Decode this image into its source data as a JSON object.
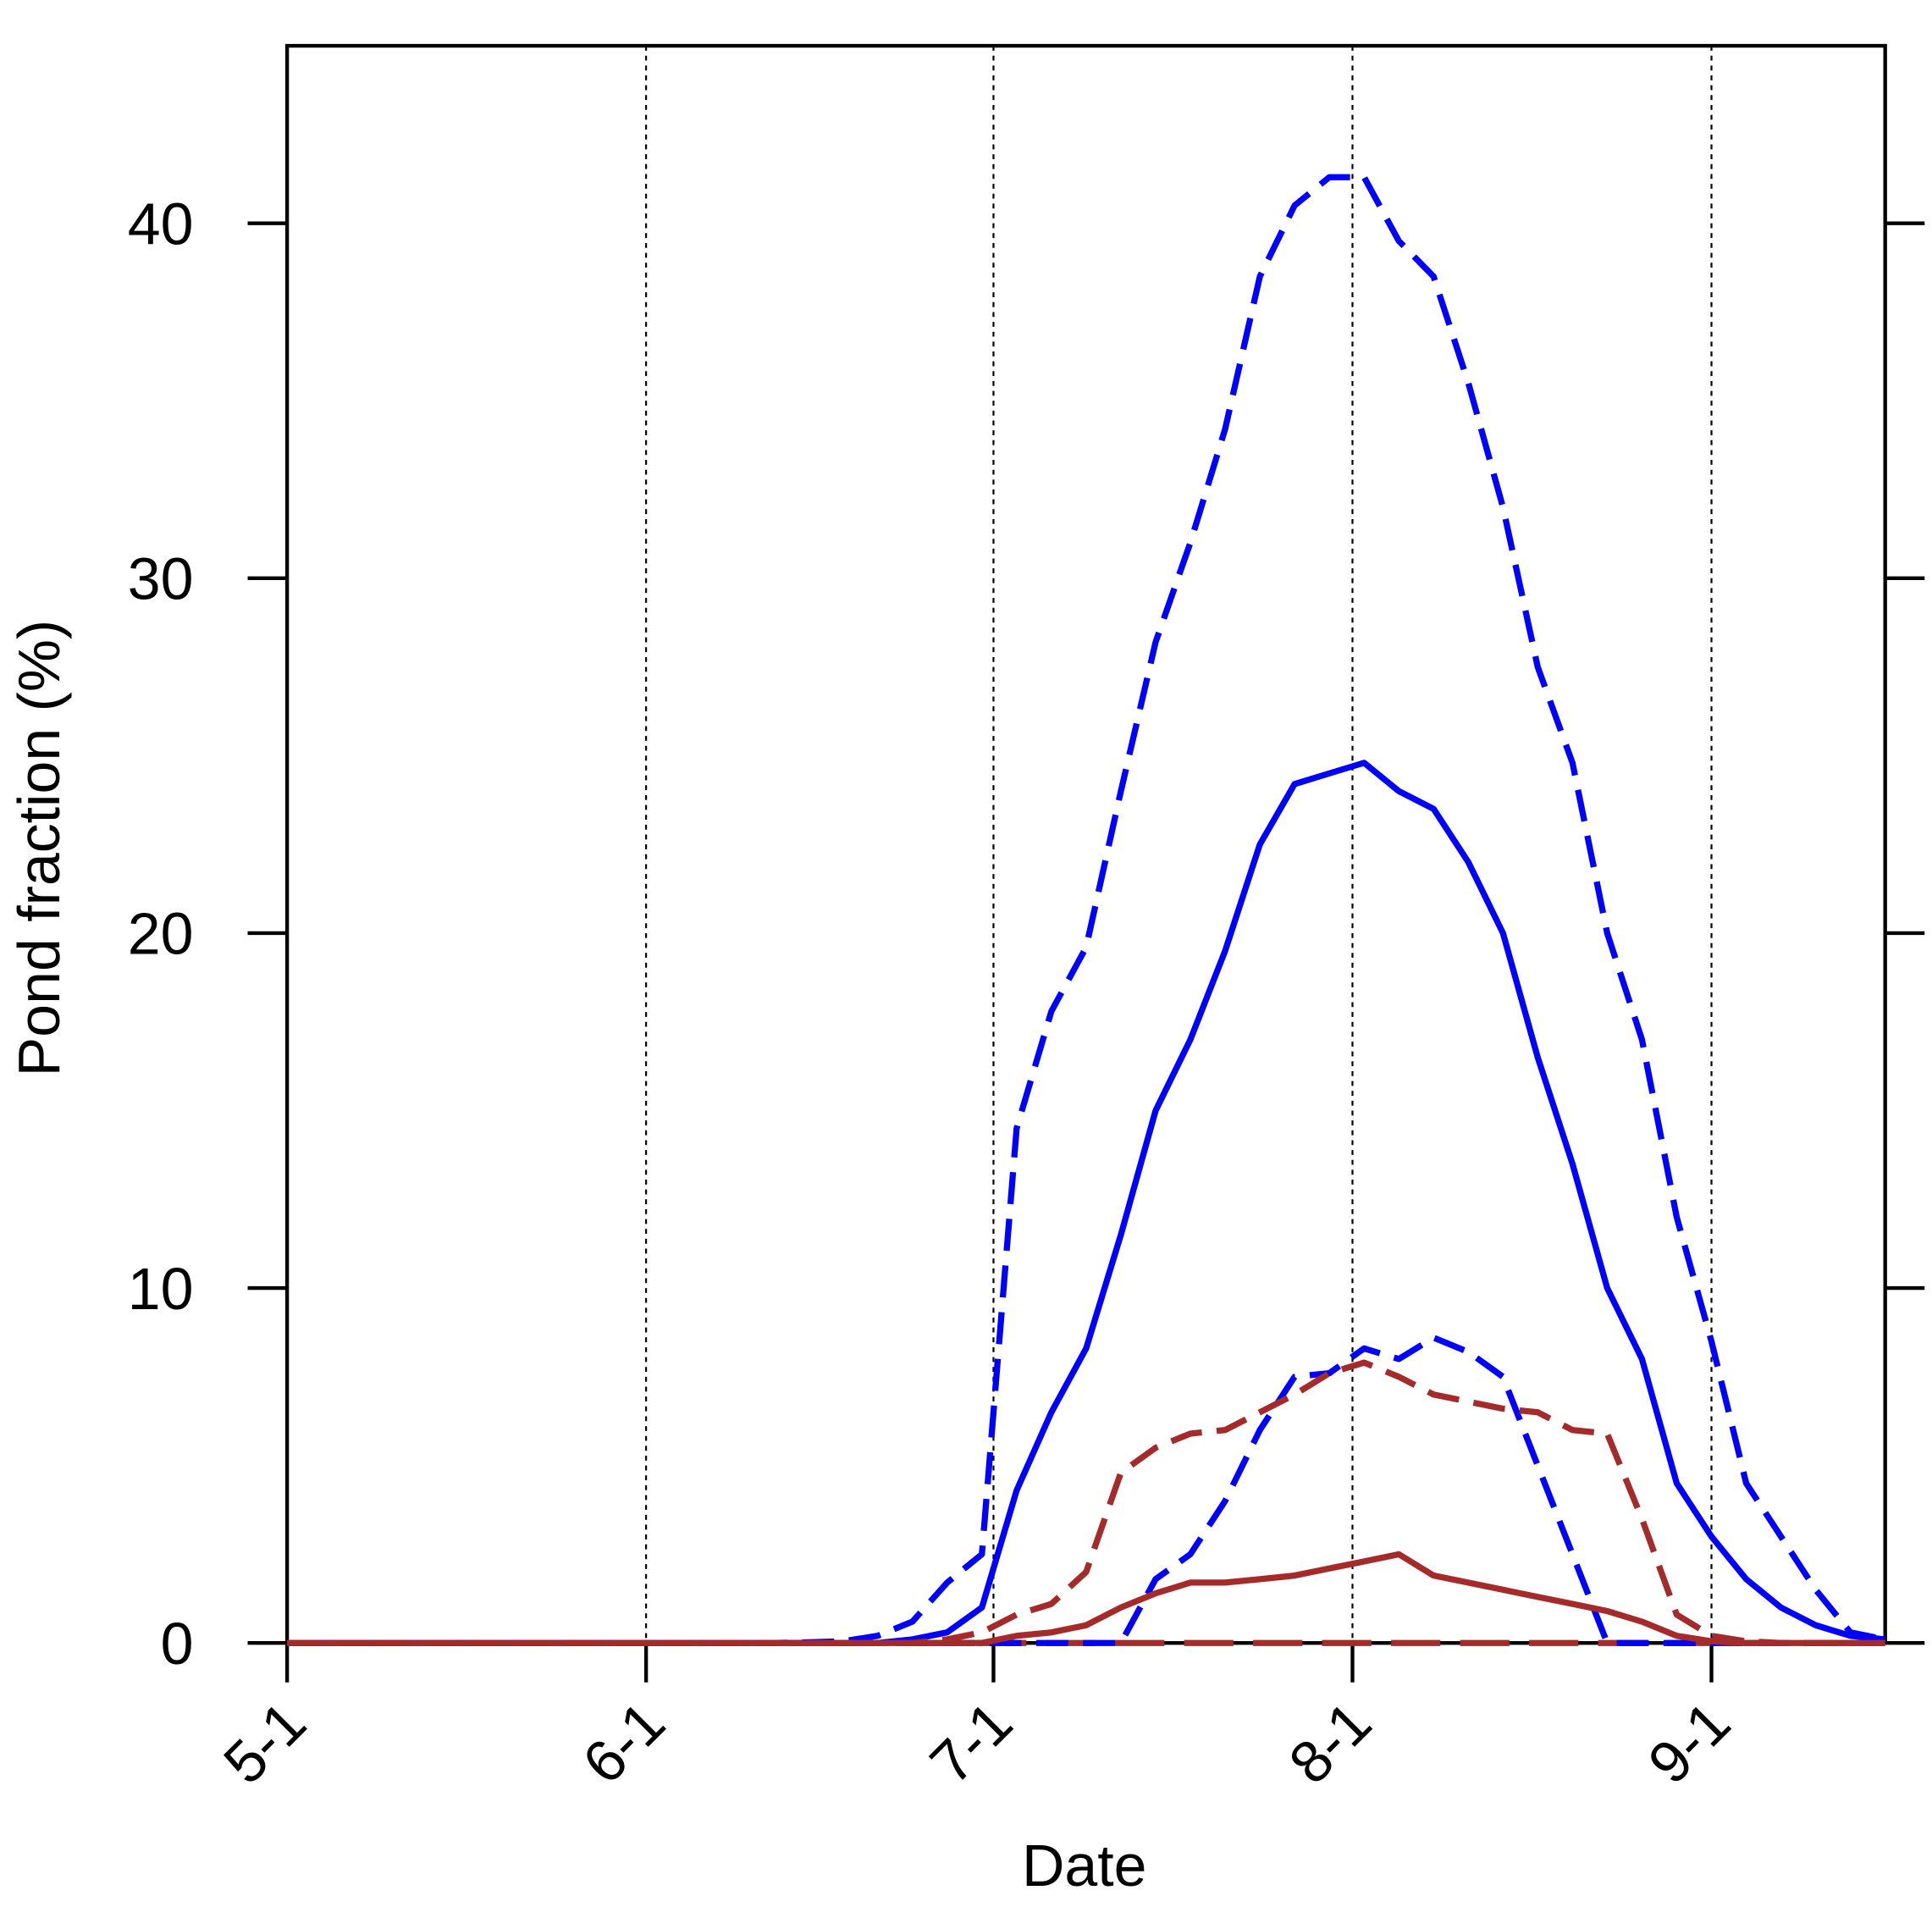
{
  "chart_data": {
    "type": "line",
    "xlabel": "Date",
    "ylabel": "Pond fraction (%)",
    "x": [
      0,
      3,
      6,
      9,
      12,
      15,
      18,
      21,
      24,
      27,
      30,
      33,
      36,
      39,
      42,
      45,
      48,
      51,
      54,
      57,
      60,
      63,
      66,
      69,
      72,
      75,
      78,
      81,
      84,
      87,
      90,
      93,
      96,
      99,
      102,
      105,
      108,
      111,
      114,
      117,
      120,
      123,
      126,
      129,
      132,
      135,
      138
    ],
    "xlim": [
      0,
      138
    ],
    "xticks": [
      {
        "value": 0,
        "label": "5-1"
      },
      {
        "value": 31,
        "label": "6-1"
      },
      {
        "value": 61,
        "label": "7-1"
      },
      {
        "value": 92,
        "label": "8-1"
      },
      {
        "value": 123,
        "label": "9-1"
      }
    ],
    "ylim": [
      0,
      45
    ],
    "yticks": [
      0,
      10,
      20,
      30,
      40
    ],
    "xgrid": true,
    "series": [
      {
        "color": "#a52a2a",
        "dash": "longdash",
        "values": [
          0,
          0,
          0,
          0,
          0,
          0,
          0,
          0,
          0,
          0,
          0,
          0,
          0,
          0,
          0,
          0,
          0,
          0,
          0,
          0,
          0,
          0,
          0,
          0,
          0,
          0,
          0,
          0,
          0,
          0,
          0,
          0,
          0,
          0,
          0,
          0,
          0,
          0,
          0,
          0,
          0,
          0,
          0,
          0,
          0,
          0,
          0
        ]
      },
      {
        "color": "#0000ff",
        "dash": "dashed",
        "values": [
          0,
          0,
          0,
          0,
          0,
          0,
          0,
          0,
          0,
          0,
          0,
          0,
          0,
          0,
          0,
          0.02,
          0.05,
          0.2,
          0.6,
          1.7,
          2.5,
          14.5,
          17.8,
          19.6,
          24,
          28.2,
          31,
          34.2,
          38.5,
          40.5,
          41.3,
          41.3,
          39.5,
          38.5,
          35.5,
          32,
          27.5,
          24.8,
          20,
          17,
          12,
          8.5,
          4.5,
          3,
          1.5,
          0.3,
          0.1
        ]
      },
      {
        "color": "#0000ff",
        "dash": "solid",
        "values": [
          0,
          0,
          0,
          0,
          0,
          0,
          0,
          0,
          0,
          0,
          0,
          0,
          0,
          0,
          0,
          0,
          0,
          0,
          0.1,
          0.3,
          1,
          4.3,
          6.5,
          8.3,
          11.5,
          15,
          17,
          19.5,
          22.5,
          24.2,
          24.5,
          24.8,
          24,
          23.5,
          22,
          20,
          16.5,
          13.5,
          10,
          8,
          4.5,
          3,
          1.8,
          1,
          0.5,
          0.2,
          0.1
        ]
      },
      {
        "color": "#0000ff",
        "dash": "dashed",
        "values": [
          0,
          0,
          0,
          0,
          0,
          0,
          0,
          0,
          0,
          0,
          0,
          0,
          0,
          0,
          0,
          0,
          0,
          0,
          0,
          0,
          0,
          0,
          0,
          0,
          0,
          1.8,
          2.5,
          4,
          6,
          7.5,
          7.6,
          8.3,
          8,
          8.6,
          8.2,
          7.5,
          5,
          2.5,
          0,
          0,
          0,
          0,
          0,
          0,
          0,
          0,
          0
        ]
      },
      {
        "color": "#a52a2a",
        "dash": "dashed",
        "values": [
          0,
          0,
          0,
          0,
          0,
          0,
          0,
          0,
          0,
          0,
          0,
          0,
          0,
          0,
          0,
          0,
          0,
          0,
          0,
          0.1,
          0.3,
          0.8,
          1.1,
          2,
          4.8,
          5.5,
          5.9,
          6,
          6.5,
          7,
          7.6,
          7.9,
          7.5,
          7,
          6.8,
          6.6,
          6.5,
          6,
          5.9,
          3.5,
          0.8,
          0.2,
          0.05,
          0,
          0,
          0,
          0
        ]
      },
      {
        "color": "#a52a2a",
        "dash": "solid",
        "values": [
          0,
          0,
          0,
          0,
          0,
          0,
          0,
          0,
          0,
          0,
          0,
          0,
          0,
          0,
          0,
          0,
          0,
          0,
          0,
          0,
          0,
          0.2,
          0.3,
          0.5,
          1,
          1.4,
          1.7,
          1.7,
          1.8,
          1.9,
          2.1,
          2.3,
          2.5,
          1.9,
          1.7,
          1.5,
          1.3,
          1.1,
          0.9,
          0.6,
          0.2,
          0.05,
          0,
          0,
          0,
          0,
          0
        ]
      }
    ]
  }
}
